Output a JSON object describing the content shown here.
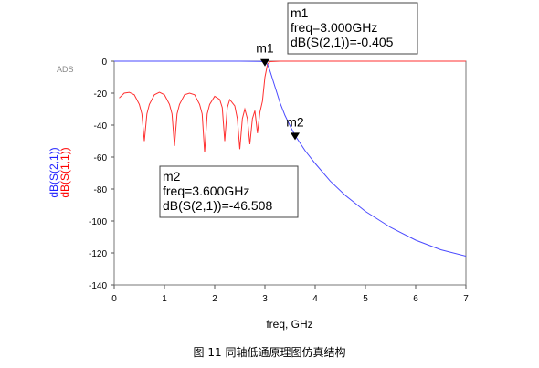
{
  "chart_data": {
    "type": "line",
    "watermark": "ADS",
    "xlabel": "freq, GHz",
    "ylabels": [
      {
        "text": "dB(S(2,1))",
        "color": "#2222ff"
      },
      {
        "text": "dB(S(1,1))",
        "color": "#ff0000"
      }
    ],
    "xlim": [
      0,
      7
    ],
    "ylim": [
      -140,
      0
    ],
    "xticks": [
      0,
      1,
      2,
      3,
      4,
      5,
      6,
      7
    ],
    "yticks": [
      0,
      -20,
      -40,
      -60,
      -80,
      -100,
      -120,
      -140
    ],
    "series": [
      {
        "name": "dB(S(2,1))",
        "color": "#4a4aff",
        "x": [
          0.0,
          0.5,
          1.0,
          1.5,
          2.0,
          2.5,
          2.9,
          3.0,
          3.05,
          3.1,
          3.2,
          3.3,
          3.4,
          3.5,
          3.6,
          3.8,
          4.0,
          4.3,
          4.6,
          5.0,
          5.5,
          6.0,
          6.5,
          7.0
        ],
        "y": [
          0.0,
          0.0,
          0.0,
          0.0,
          0.0,
          0.0,
          -0.1,
          -0.405,
          -2.0,
          -6.0,
          -16.0,
          -26.0,
          -34.0,
          -40.5,
          -46.508,
          -56.0,
          -64.0,
          -75.0,
          -84.0,
          -94.0,
          -104.0,
          -112.0,
          -118.0,
          -122.0
        ]
      },
      {
        "name": "dB(S(1,1))",
        "color": "#ff3030",
        "x": [
          0.1,
          0.2,
          0.3,
          0.4,
          0.5,
          0.55,
          0.6,
          0.65,
          0.7,
          0.8,
          0.9,
          1.0,
          1.1,
          1.15,
          1.2,
          1.25,
          1.3,
          1.4,
          1.5,
          1.6,
          1.7,
          1.75,
          1.8,
          1.85,
          1.9,
          2.0,
          2.1,
          2.15,
          2.2,
          2.25,
          2.3,
          2.4,
          2.45,
          2.5,
          2.55,
          2.6,
          2.65,
          2.7,
          2.75,
          2.8,
          2.85,
          2.9,
          2.95,
          3.0,
          3.05,
          3.1,
          3.3,
          4.0,
          5.0,
          6.0,
          7.0
        ],
        "y": [
          -23,
          -20,
          -19.5,
          -21,
          -27,
          -33,
          -50,
          -33,
          -27,
          -21,
          -19.5,
          -21,
          -27,
          -33,
          -53,
          -33,
          -27,
          -21,
          -20,
          -21,
          -27,
          -33,
          -57,
          -33,
          -27,
          -22,
          -24,
          -29,
          -50,
          -29,
          -24,
          -28,
          -36,
          -55,
          -36,
          -30,
          -36,
          -52,
          -36,
          -31,
          -45,
          -32,
          -25,
          -10,
          -2,
          -0.3,
          0,
          0,
          0,
          0,
          0
        ]
      }
    ],
    "markers": [
      {
        "name": "m1",
        "x": 3.0,
        "y": -0.405,
        "lines": [
          "m1",
          "freq=3.000GHz",
          "dB(S(2,1))=-0.405"
        ]
      },
      {
        "name": "m2",
        "x": 3.6,
        "y": -46.508,
        "lines": [
          "m2",
          "freq=3.600GHz",
          "dB(S(2,1))=-46.508"
        ]
      }
    ]
  },
  "caption": "图 11  同轴低通原理图仿真结构"
}
